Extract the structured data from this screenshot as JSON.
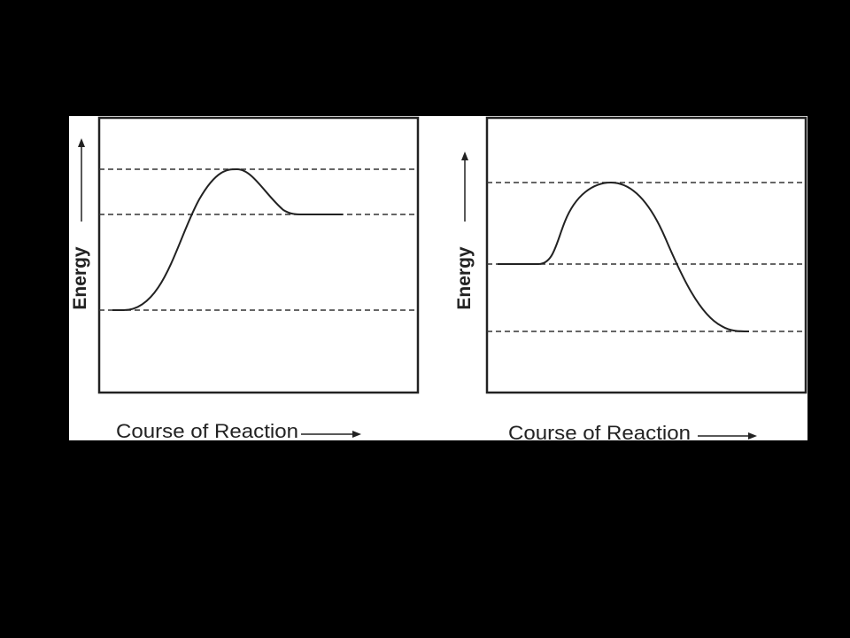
{
  "colors": {
    "background": "#000000",
    "panel": "#ffffff",
    "ink": "#222222"
  },
  "diagrams": [
    {
      "y_axis_label": "Energy",
      "x_axis_label": "Course of Reaction",
      "profile": "endothermic"
    },
    {
      "y_axis_label": "Energy",
      "x_axis_label": "Course of Reaction",
      "profile": "exothermic"
    }
  ]
}
